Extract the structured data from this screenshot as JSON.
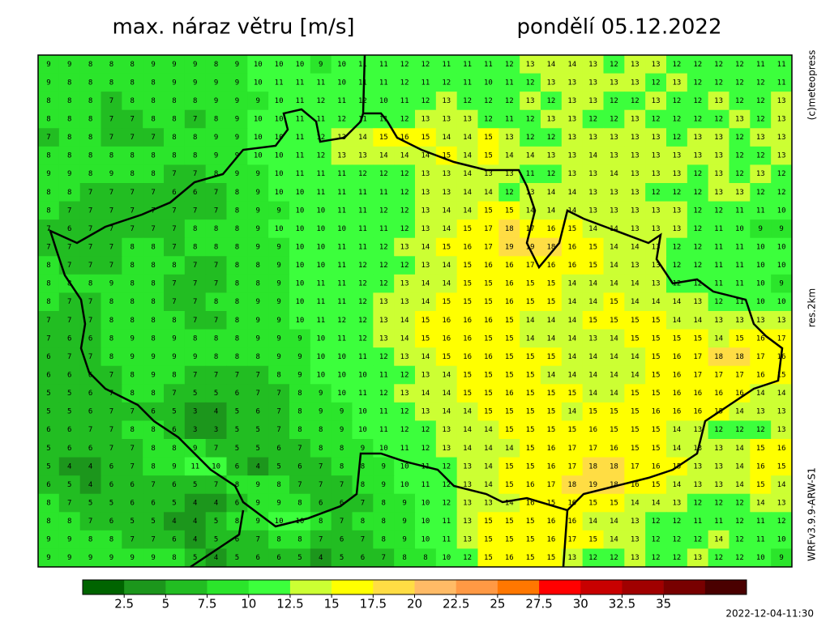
{
  "chart_data": {
    "type": "heatmap",
    "title": "max. náraz větru [m/s]",
    "subtitle": "pondělí 05.12.2022",
    "credit": "(c)meteopress",
    "resolution": "res.2km",
    "model": "WRFv3.9.9-ARW-S1",
    "run": "2022-12-04-11:30",
    "values": [
      [
        9,
        9,
        8,
        8,
        8,
        9,
        9,
        9,
        8,
        9,
        10,
        10,
        10,
        9,
        10,
        11,
        11,
        12,
        12,
        11,
        11,
        11,
        12,
        13,
        14,
        14,
        13,
        12,
        13,
        13,
        12,
        12,
        12,
        12,
        11,
        11
      ],
      [
        9,
        8,
        8,
        8,
        8,
        8,
        9,
        9,
        9,
        9,
        10,
        11,
        11,
        11,
        10,
        11,
        11,
        12,
        11,
        12,
        11,
        10,
        11,
        12,
        13,
        13,
        13,
        13,
        13,
        12,
        13,
        12,
        12,
        12,
        12,
        11
      ],
      [
        8,
        8,
        8,
        7,
        8,
        8,
        8,
        8,
        9,
        9,
        9,
        10,
        11,
        12,
        11,
        12,
        10,
        11,
        12,
        13,
        12,
        12,
        12,
        13,
        12,
        13,
        13,
        12,
        12,
        13,
        12,
        12,
        13,
        12,
        12,
        13
      ],
      [
        8,
        8,
        8,
        7,
        7,
        8,
        8,
        7,
        8,
        9,
        10,
        10,
        11,
        11,
        12,
        11,
        11,
        12,
        13,
        13,
        13,
        12,
        11,
        12,
        13,
        13,
        12,
        12,
        13,
        12,
        12,
        12,
        12,
        13,
        12,
        13
      ],
      [
        7,
        8,
        8,
        7,
        7,
        7,
        8,
        8,
        9,
        9,
        10,
        10,
        11,
        12,
        13,
        14,
        15,
        16,
        15,
        14,
        14,
        15,
        13,
        12,
        12,
        13,
        13,
        13,
        13,
        13,
        12,
        13,
        13,
        12,
        13,
        13
      ],
      [
        8,
        8,
        8,
        8,
        8,
        8,
        8,
        8,
        9,
        9,
        10,
        10,
        11,
        12,
        13,
        13,
        14,
        14,
        14,
        15,
        14,
        15,
        14,
        14,
        13,
        13,
        14,
        13,
        13,
        13,
        13,
        13,
        13,
        12,
        12,
        13
      ],
      [
        9,
        9,
        8,
        9,
        8,
        8,
        7,
        7,
        8,
        9,
        9,
        10,
        11,
        11,
        11,
        12,
        12,
        12,
        13,
        13,
        14,
        13,
        13,
        11,
        12,
        13,
        13,
        14,
        13,
        13,
        13,
        12,
        13,
        12,
        13,
        12
      ],
      [
        8,
        8,
        7,
        7,
        7,
        7,
        6,
        6,
        7,
        8,
        9,
        10,
        10,
        11,
        11,
        11,
        11,
        12,
        13,
        13,
        14,
        14,
        12,
        13,
        14,
        14,
        13,
        13,
        13,
        12,
        12,
        12,
        13,
        13,
        12,
        12
      ],
      [
        8,
        7,
        7,
        7,
        7,
        7,
        7,
        7,
        7,
        8,
        9,
        9,
        10,
        10,
        11,
        11,
        12,
        12,
        13,
        14,
        14,
        15,
        15,
        14,
        14,
        14,
        13,
        13,
        13,
        13,
        13,
        12,
        12,
        11,
        11,
        10
      ],
      [
        7,
        6,
        7,
        7,
        7,
        7,
        7,
        8,
        8,
        8,
        9,
        10,
        10,
        10,
        10,
        11,
        11,
        12,
        13,
        14,
        15,
        17,
        18,
        17,
        16,
        15,
        14,
        14,
        13,
        13,
        13,
        12,
        11,
        10,
        9,
        9
      ],
      [
        7,
        7,
        7,
        7,
        8,
        8,
        7,
        8,
        8,
        8,
        9,
        9,
        10,
        10,
        11,
        11,
        12,
        13,
        14,
        15,
        16,
        17,
        19,
        19,
        18,
        16,
        15,
        14,
        14,
        13,
        12,
        12,
        11,
        11,
        10,
        10
      ],
      [
        8,
        7,
        7,
        7,
        8,
        8,
        8,
        7,
        7,
        8,
        8,
        9,
        10,
        10,
        11,
        12,
        12,
        12,
        13,
        14,
        15,
        16,
        16,
        17,
        16,
        16,
        15,
        14,
        13,
        13,
        12,
        12,
        11,
        11,
        10,
        10
      ],
      [
        8,
        8,
        8,
        9,
        8,
        8,
        7,
        7,
        7,
        8,
        8,
        9,
        10,
        11,
        11,
        12,
        12,
        13,
        14,
        14,
        15,
        15,
        16,
        15,
        15,
        14,
        14,
        14,
        14,
        13,
        12,
        12,
        11,
        11,
        10,
        9
      ],
      [
        8,
        7,
        7,
        8,
        8,
        8,
        7,
        7,
        8,
        8,
        9,
        9,
        10,
        11,
        11,
        12,
        13,
        13,
        14,
        15,
        15,
        15,
        16,
        15,
        15,
        14,
        14,
        15,
        14,
        14,
        14,
        13,
        12,
        11,
        10,
        10
      ],
      [
        7,
        7,
        7,
        8,
        8,
        8,
        8,
        7,
        7,
        8,
        9,
        9,
        10,
        11,
        12,
        12,
        13,
        14,
        15,
        16,
        16,
        16,
        15,
        14,
        14,
        14,
        15,
        15,
        15,
        15,
        14,
        14,
        13,
        13,
        13,
        13
      ],
      [
        7,
        6,
        6,
        8,
        9,
        8,
        9,
        8,
        8,
        8,
        9,
        9,
        9,
        10,
        11,
        12,
        13,
        14,
        15,
        16,
        16,
        15,
        15,
        14,
        14,
        14,
        13,
        14,
        15,
        15,
        15,
        15,
        14,
        15,
        16,
        17
      ],
      [
        6,
        7,
        7,
        8,
        9,
        9,
        9,
        9,
        8,
        8,
        8,
        9,
        9,
        10,
        10,
        11,
        12,
        13,
        14,
        15,
        16,
        16,
        15,
        15,
        15,
        14,
        14,
        14,
        14,
        15,
        16,
        17,
        18,
        18,
        17,
        16
      ],
      [
        6,
        6,
        6,
        7,
        8,
        9,
        8,
        7,
        7,
        7,
        7,
        8,
        9,
        10,
        10,
        10,
        11,
        12,
        13,
        14,
        15,
        15,
        15,
        15,
        14,
        14,
        14,
        14,
        14,
        15,
        16,
        17,
        17,
        17,
        16,
        15
      ],
      [
        5,
        5,
        6,
        7,
        8,
        8,
        7,
        5,
        5,
        6,
        7,
        7,
        8,
        9,
        10,
        11,
        12,
        13,
        14,
        14,
        15,
        15,
        16,
        15,
        15,
        15,
        14,
        14,
        15,
        15,
        16,
        16,
        16,
        16,
        14,
        14
      ],
      [
        5,
        5,
        6,
        7,
        7,
        6,
        5,
        3,
        4,
        5,
        6,
        7,
        8,
        9,
        9,
        10,
        11,
        12,
        13,
        14,
        14,
        15,
        15,
        15,
        15,
        14,
        15,
        15,
        15,
        16,
        16,
        16,
        15,
        14,
        13,
        13
      ],
      [
        6,
        6,
        7,
        7,
        8,
        8,
        6,
        3,
        3,
        5,
        5,
        7,
        8,
        8,
        9,
        10,
        11,
        12,
        12,
        13,
        14,
        14,
        15,
        15,
        15,
        15,
        16,
        15,
        15,
        15,
        14,
        13,
        12,
        12,
        12,
        13
      ],
      [
        5,
        6,
        6,
        7,
        7,
        8,
        8,
        9,
        7,
        5,
        5,
        6,
        7,
        8,
        8,
        9,
        10,
        11,
        12,
        13,
        14,
        14,
        14,
        15,
        16,
        17,
        17,
        16,
        15,
        15,
        14,
        13,
        13,
        14,
        15,
        16
      ],
      [
        5,
        4,
        4,
        6,
        7,
        8,
        9,
        11,
        10,
        6,
        4,
        5,
        6,
        7,
        8,
        8,
        9,
        10,
        11,
        12,
        13,
        14,
        15,
        15,
        16,
        17,
        18,
        18,
        17,
        16,
        15,
        13,
        13,
        14,
        16,
        15
      ],
      [
        6,
        5,
        4,
        6,
        6,
        7,
        6,
        5,
        7,
        8,
        9,
        8,
        7,
        7,
        7,
        8,
        9,
        10,
        11,
        12,
        13,
        14,
        15,
        16,
        17,
        18,
        19,
        18,
        16,
        15,
        14,
        13,
        13,
        14,
        15,
        14
      ],
      [
        8,
        7,
        5,
        5,
        6,
        6,
        5,
        4,
        4,
        6,
        9,
        9,
        8,
        6,
        6,
        7,
        8,
        9,
        10,
        12,
        13,
        13,
        14,
        16,
        15,
        16,
        15,
        15,
        14,
        14,
        13,
        12,
        12,
        12,
        14,
        13
      ],
      [
        8,
        8,
        7,
        6,
        5,
        5,
        4,
        4,
        5,
        8,
        9,
        10,
        10,
        8,
        7,
        8,
        8,
        9,
        10,
        11,
        13,
        15,
        15,
        15,
        16,
        16,
        14,
        14,
        13,
        12,
        12,
        11,
        11,
        12,
        11,
        12
      ],
      [
        9,
        9,
        8,
        8,
        7,
        7,
        6,
        4,
        5,
        6,
        7,
        8,
        8,
        7,
        6,
        7,
        8,
        9,
        10,
        11,
        13,
        15,
        15,
        15,
        16,
        17,
        15,
        14,
        13,
        12,
        12,
        12,
        14,
        12,
        11,
        10
      ],
      [
        9,
        9,
        9,
        9,
        9,
        9,
        8,
        5,
        4,
        5,
        6,
        6,
        5,
        4,
        5,
        6,
        7,
        8,
        8,
        10,
        12,
        15,
        16,
        15,
        15,
        13,
        12,
        12,
        13,
        12,
        12,
        13,
        12,
        12,
        10,
        9
      ]
    ],
    "colorbar": {
      "ticks": [
        2.5,
        5,
        7.5,
        10,
        12.5,
        15,
        17.5,
        20,
        22.5,
        25,
        27.5,
        30,
        32.5,
        35
      ],
      "colors": [
        "#006400",
        "#1c961c",
        "#22bd22",
        "#2be52b",
        "#3cff3c",
        "#ccff33",
        "#ffff00",
        "#ffdd44",
        "#ffbb66",
        "#ff9944",
        "#ff7700",
        "#ff0000",
        "#c80000",
        "#a00000",
        "#780000",
        "#4a0000"
      ]
    }
  }
}
